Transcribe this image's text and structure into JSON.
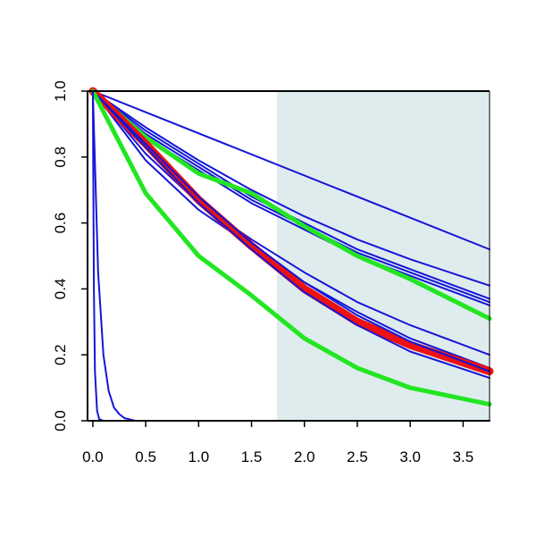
{
  "chart_data": {
    "type": "line",
    "title": "",
    "xlabel": "",
    "ylabel": "",
    "xlim": [
      -0.05,
      3.75
    ],
    "ylim": [
      0,
      1.0
    ],
    "x_ticks": [
      0.0,
      0.5,
      1.0,
      1.5,
      2.0,
      2.5,
      3.0,
      3.5
    ],
    "x_tick_labels": [
      "0.0",
      "0.5",
      "1.0",
      "1.5",
      "2.0",
      "2.5",
      "3.0",
      "3.5"
    ],
    "y_ticks": [
      0.0,
      0.2,
      0.4,
      0.6,
      0.8,
      1.0
    ],
    "y_tick_labels": [
      "0.0",
      "0.2",
      "0.4",
      "0.6",
      "0.8",
      "1.0"
    ],
    "shaded_region": {
      "x_start": 1.74,
      "x_end": 3.75,
      "color": "#dfeced"
    },
    "grid": false,
    "legend": "none",
    "colors": {
      "blue": "#1515d8",
      "green": "#22e622",
      "red": "#ee1111",
      "axis": "#000000"
    },
    "series": [
      {
        "color": "blue",
        "width": 2,
        "x": [
          0,
          3.75
        ],
        "y": [
          1.0,
          0.52
        ]
      },
      {
        "color": "blue",
        "width": 2,
        "x": [
          0,
          0.5,
          1.0,
          1.5,
          2.0,
          2.5,
          3.0,
          3.75
        ],
        "y": [
          1.0,
          0.89,
          0.79,
          0.7,
          0.62,
          0.55,
          0.49,
          0.41
        ]
      },
      {
        "color": "blue",
        "width": 2,
        "x": [
          0,
          0.5,
          1.0,
          1.5,
          2.0,
          2.5,
          3.0,
          3.75
        ],
        "y": [
          1.0,
          0.88,
          0.78,
          0.68,
          0.6,
          0.52,
          0.46,
          0.37
        ]
      },
      {
        "color": "blue",
        "width": 2,
        "x": [
          0,
          0.5,
          1.0,
          1.5,
          2.0,
          2.5,
          3.0,
          3.75
        ],
        "y": [
          1.0,
          0.87,
          0.77,
          0.67,
          0.59,
          0.51,
          0.45,
          0.36
        ]
      },
      {
        "color": "blue",
        "width": 2,
        "x": [
          0,
          0.5,
          1.0,
          1.5,
          2.0,
          2.5,
          3.0,
          3.75
        ],
        "y": [
          1.0,
          0.86,
          0.76,
          0.66,
          0.58,
          0.5,
          0.44,
          0.35
        ]
      },
      {
        "color": "green",
        "width": 5,
        "x": [
          0,
          0.5,
          1.0,
          1.5,
          2.0,
          2.5,
          3.0,
          3.75
        ],
        "y": [
          1.0,
          0.86,
          0.75,
          0.69,
          0.59,
          0.5,
          0.43,
          0.31
        ]
      },
      {
        "color": "blue",
        "width": 2,
        "x": [
          0,
          0.5,
          1.0,
          1.5,
          2.0,
          2.5,
          3.0,
          3.75
        ],
        "y": [
          1.0,
          0.81,
          0.66,
          0.55,
          0.45,
          0.36,
          0.29,
          0.2
        ]
      },
      {
        "color": "blue",
        "width": 2,
        "x": [
          0,
          0.5,
          1.0,
          1.5,
          2.0,
          2.5,
          3.0,
          3.75
        ],
        "y": [
          1.0,
          0.79,
          0.64,
          0.53,
          0.42,
          0.33,
          0.25,
          0.16
        ]
      },
      {
        "color": "red",
        "width": 9,
        "x": [
          0,
          0.5,
          1.0,
          1.5,
          2.0,
          2.5,
          3.0,
          3.75
        ],
        "y": [
          1.0,
          0.84,
          0.67,
          0.53,
          0.4,
          0.3,
          0.23,
          0.15
        ]
      },
      {
        "color": "blue",
        "width": 2,
        "x": [
          0,
          0.5,
          1.0,
          1.5,
          2.0,
          2.5,
          3.0,
          3.75
        ],
        "y": [
          1.0,
          0.83,
          0.66,
          0.52,
          0.39,
          0.29,
          0.21,
          0.13
        ]
      },
      {
        "color": "blue",
        "width": 2,
        "x": [
          0,
          0.5,
          1.0,
          1.5,
          2.0,
          2.5,
          3.0,
          3.75
        ],
        "y": [
          1.0,
          0.84,
          0.68,
          0.54,
          0.42,
          0.32,
          0.24,
          0.15
        ]
      },
      {
        "color": "green",
        "width": 5,
        "x": [
          0,
          0.5,
          1.0,
          1.5,
          2.0,
          2.5,
          3.0,
          3.75
        ],
        "y": [
          1.0,
          0.69,
          0.5,
          0.38,
          0.25,
          0.16,
          0.1,
          0.05
        ]
      },
      {
        "color": "blue",
        "width": 2,
        "x": [
          0,
          0.05,
          0.1,
          0.15,
          0.2,
          0.25,
          0.3,
          0.4,
          3.75
        ],
        "y": [
          1.0,
          0.45,
          0.2,
          0.09,
          0.04,
          0.02,
          0.008,
          0.0,
          0.0
        ]
      },
      {
        "color": "blue",
        "width": 2,
        "x": [
          0,
          0.01,
          0.02,
          0.04,
          0.06,
          0.1,
          3.75
        ],
        "y": [
          1.0,
          0.4,
          0.15,
          0.03,
          0.005,
          0.0,
          0.0
        ]
      }
    ]
  }
}
